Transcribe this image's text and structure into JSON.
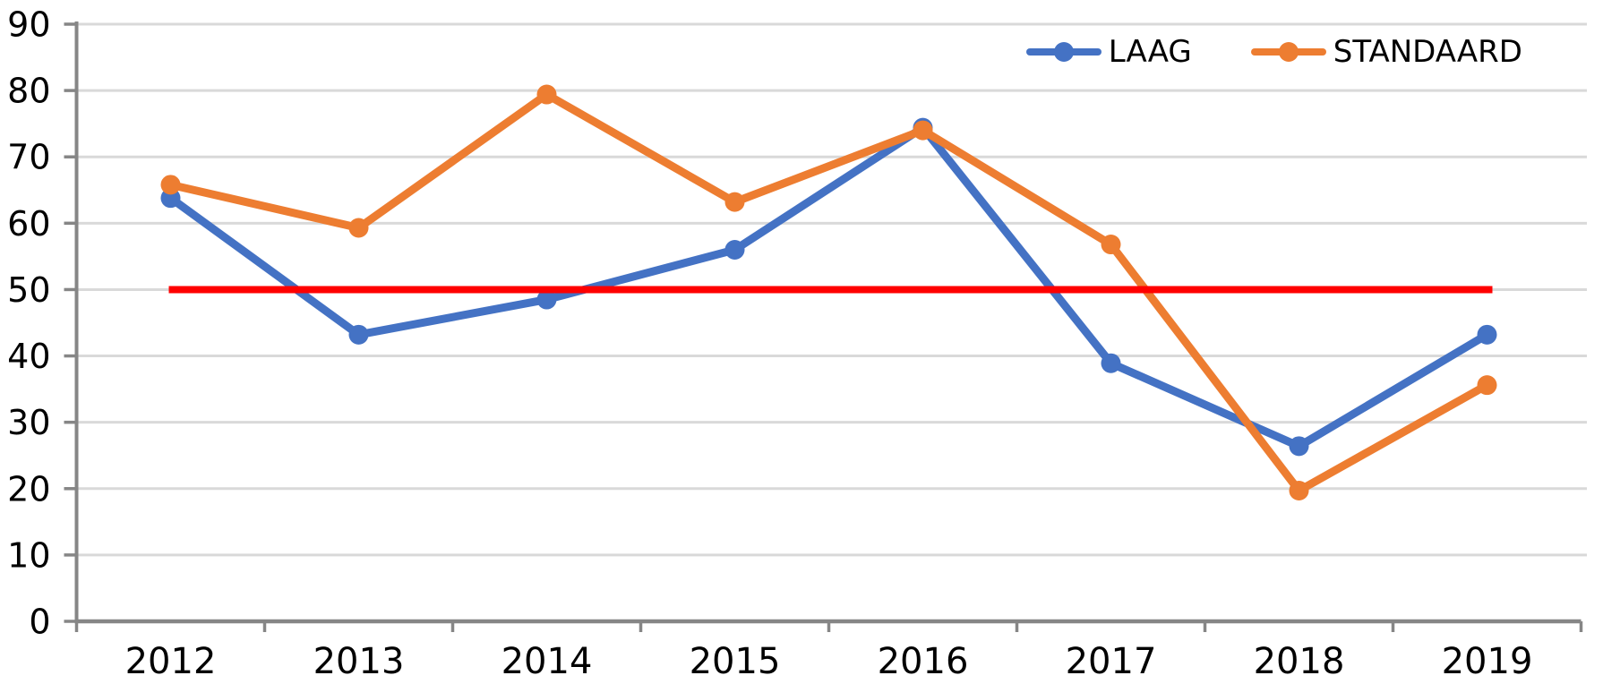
{
  "chart_data": {
    "type": "line",
    "title": "",
    "xlabel": "",
    "ylabel": "",
    "categories": [
      "2012",
      "2013",
      "2014",
      "2015",
      "2016",
      "2017",
      "2018",
      "2019"
    ],
    "series": [
      {
        "name": "LAAG",
        "color": "#4472C4",
        "values": [
          63.8,
          43.2,
          48.5,
          56.0,
          74.4,
          38.9,
          26.4,
          43.2
        ]
      },
      {
        "name": "STANDAARD",
        "color": "#ED7D31",
        "values": [
          65.8,
          59.3,
          79.4,
          63.2,
          74.0,
          56.8,
          19.7,
          35.6
        ]
      }
    ],
    "reference_line": {
      "value": 50,
      "color": "#FF0000"
    },
    "ylim": [
      0,
      90
    ],
    "ytick_step": 10,
    "grid": true,
    "legend_position": "top-right",
    "marker": "circle"
  },
  "legend": {
    "items": [
      {
        "label": "LAAG",
        "color": "#4472C4"
      },
      {
        "label": "STANDAARD",
        "color": "#ED7D31"
      }
    ]
  },
  "colors": {
    "background": "#FFFFFF",
    "gridline": "#D9D9D9",
    "axis": "#868686",
    "text": "#000000"
  }
}
